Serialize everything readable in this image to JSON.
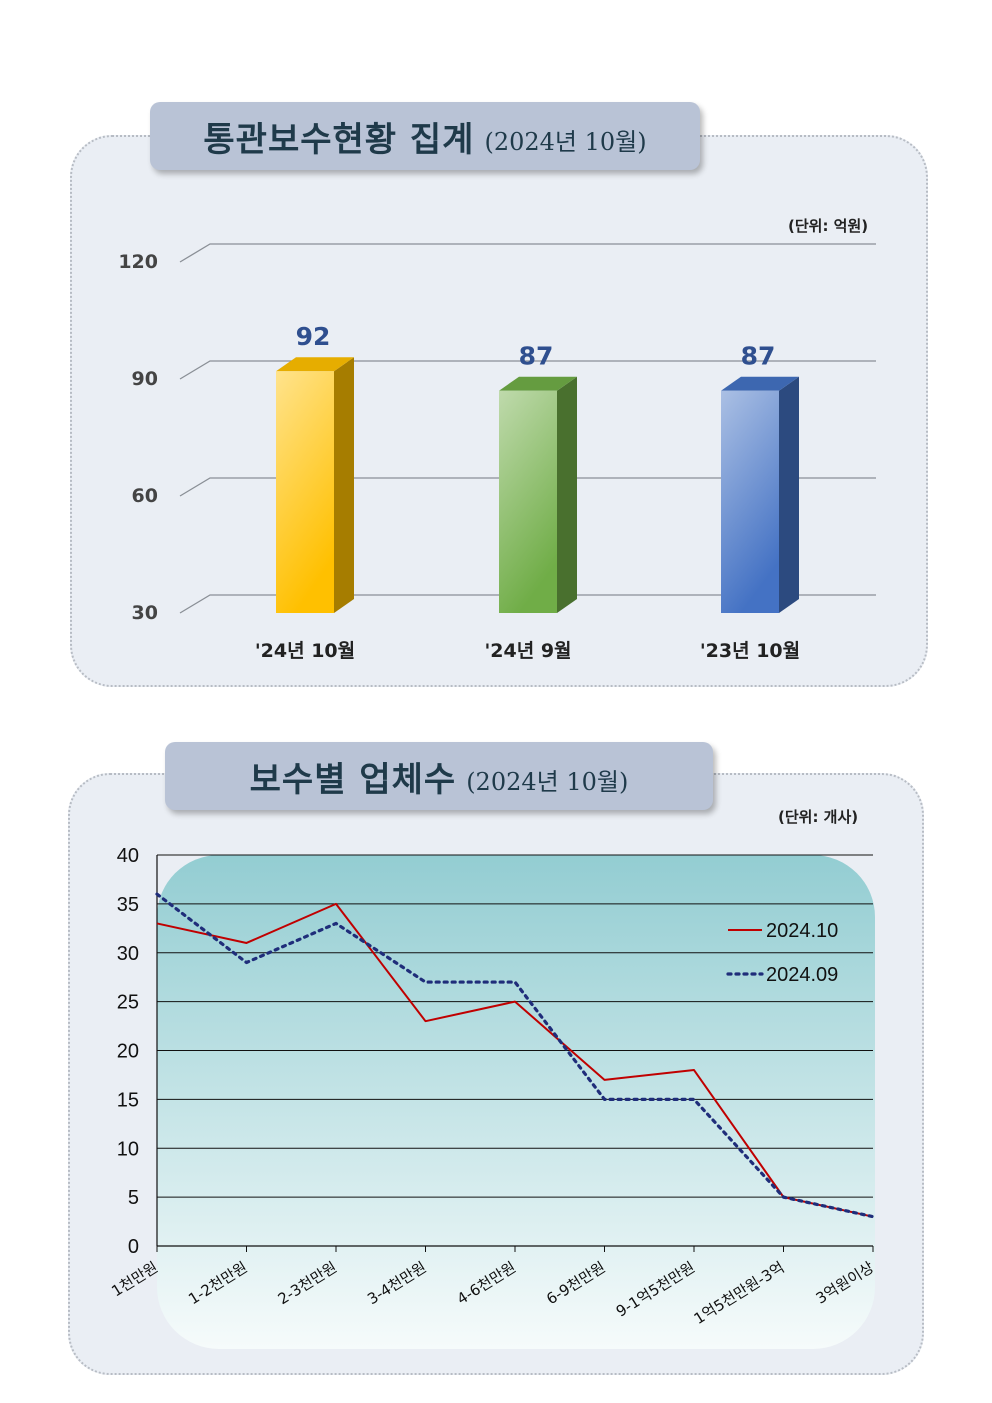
{
  "chart1": {
    "title": "통관보수현황 집계",
    "subtitle": "(2024년 10월)",
    "unit": "(단위: 억원)",
    "chart_data": {
      "type": "bar",
      "categories": [
        "'24년 10월",
        "'24년 9월",
        "'23년 10월"
      ],
      "values": [
        92,
        87,
        87
      ],
      "ylim": [
        30,
        120
      ],
      "yticks": [
        30,
        60,
        90,
        120
      ],
      "grid": true,
      "colors": [
        "#ffc000",
        "#70ad47",
        "#4472c4"
      ],
      "value_label_color": "#2f4f8f"
    }
  },
  "chart2": {
    "title": "보수별 업체수",
    "subtitle": "(2024년 10월)",
    "unit": "(단위: 개사)",
    "chart_data": {
      "type": "line",
      "categories": [
        "1천만원",
        "1-2천만원",
        "2-3천만원",
        "3-4천만원",
        "4-6천만원",
        "6-9천만원",
        "9-1억5천만원",
        "1억5천만원-3억",
        "3억원이상"
      ],
      "series": [
        {
          "name": "2024.10",
          "values": [
            33,
            31,
            35,
            23,
            25,
            17,
            18,
            5,
            3
          ],
          "color": "#c00000",
          "style": "solid"
        },
        {
          "name": "2024.09",
          "values": [
            36,
            29,
            33,
            27,
            27,
            15,
            15,
            5,
            3
          ],
          "color": "#1f2d7a",
          "style": "dotted"
        }
      ],
      "ylim": [
        0,
        40
      ],
      "yticks": [
        0,
        5,
        10,
        15,
        20,
        25,
        30,
        35,
        40
      ],
      "grid": true,
      "legend": "top-right"
    }
  }
}
